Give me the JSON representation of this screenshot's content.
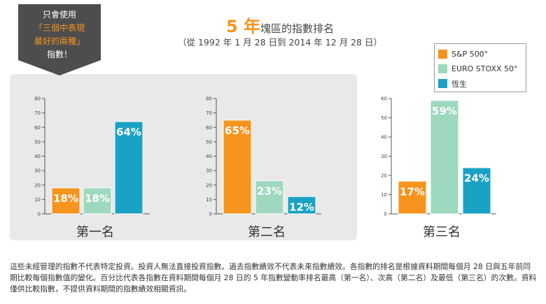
{
  "callout": {
    "line1": "只會使用",
    "line2": "「三個中表現",
    "line3": "最好的兩種」",
    "line4": "指數！"
  },
  "title": {
    "number": "5 年",
    "text": "塊區的指數排名"
  },
  "subtitle": "（從 1992 年 1 月 28 日到 2014 年 12 月 28 日）",
  "colors": {
    "sp500": "#f7941d",
    "eurostoxx": "#9ed8bf",
    "hangseng": "#1aa2c5",
    "accent": "#f7941d",
    "panel": "#e9e9e9"
  },
  "legend": [
    {
      "label": "S&P 500°",
      "color": "#f7941d"
    },
    {
      "label": "EURO STOXX 50°",
      "color": "#9ed8bf"
    },
    {
      "label": "恆生",
      "color": "#1aa2c5"
    }
  ],
  "chart_data": [
    {
      "type": "bar",
      "title": "第一名",
      "ylim": [
        0,
        80
      ],
      "yticks": [
        0,
        10,
        20,
        30,
        40,
        50,
        60,
        70,
        80
      ],
      "series": [
        {
          "name": "S&P 500°",
          "value": 18,
          "label": "18%",
          "color": "#f7941d"
        },
        {
          "name": "EURO STOXX 50°",
          "value": 18,
          "label": "18%",
          "color": "#9ed8bf"
        },
        {
          "name": "恆生",
          "value": 64,
          "label": "64%",
          "color": "#1aa2c5"
        }
      ]
    },
    {
      "type": "bar",
      "title": "第二名",
      "ylim": [
        0,
        80
      ],
      "yticks": [
        0,
        10,
        20,
        30,
        40,
        50,
        60,
        70,
        80
      ],
      "series": [
        {
          "name": "S&P 500°",
          "value": 65,
          "label": "65%",
          "color": "#f7941d"
        },
        {
          "name": "EURO STOXX 50°",
          "value": 23,
          "label": "23%",
          "color": "#9ed8bf"
        },
        {
          "name": "恆生",
          "value": 12,
          "label": "12%",
          "color": "#1aa2c5"
        }
      ]
    },
    {
      "type": "bar",
      "title": "第三名",
      "ylim": [
        0,
        60
      ],
      "yticks": [
        0,
        10,
        20,
        30,
        40,
        50,
        60
      ],
      "series": [
        {
          "name": "S&P 500°",
          "value": 17,
          "label": "17%",
          "color": "#f7941d"
        },
        {
          "name": "EURO STOXX 50°",
          "value": 59,
          "label": "59%",
          "color": "#9ed8bf"
        },
        {
          "name": "恆生",
          "value": 24,
          "label": "24%",
          "color": "#1aa2c5"
        }
      ]
    }
  ],
  "footnote": "這些未經管理的指數不代表特定投資。投資人無法直接投資指數。過去指數績效不代表未來指數績效。各指數的排名是根據資料期間每個月 28 日與五年前同期比較每個指數值的變化。百分比代表各指數在資料期間每個月 28 日的 5 年指數變動率排名最高（第一名）、次高（第二名）及最低（第三名）的次數。資料僅供比較指數，不提供資料期間的指數績效相關資訊。"
}
